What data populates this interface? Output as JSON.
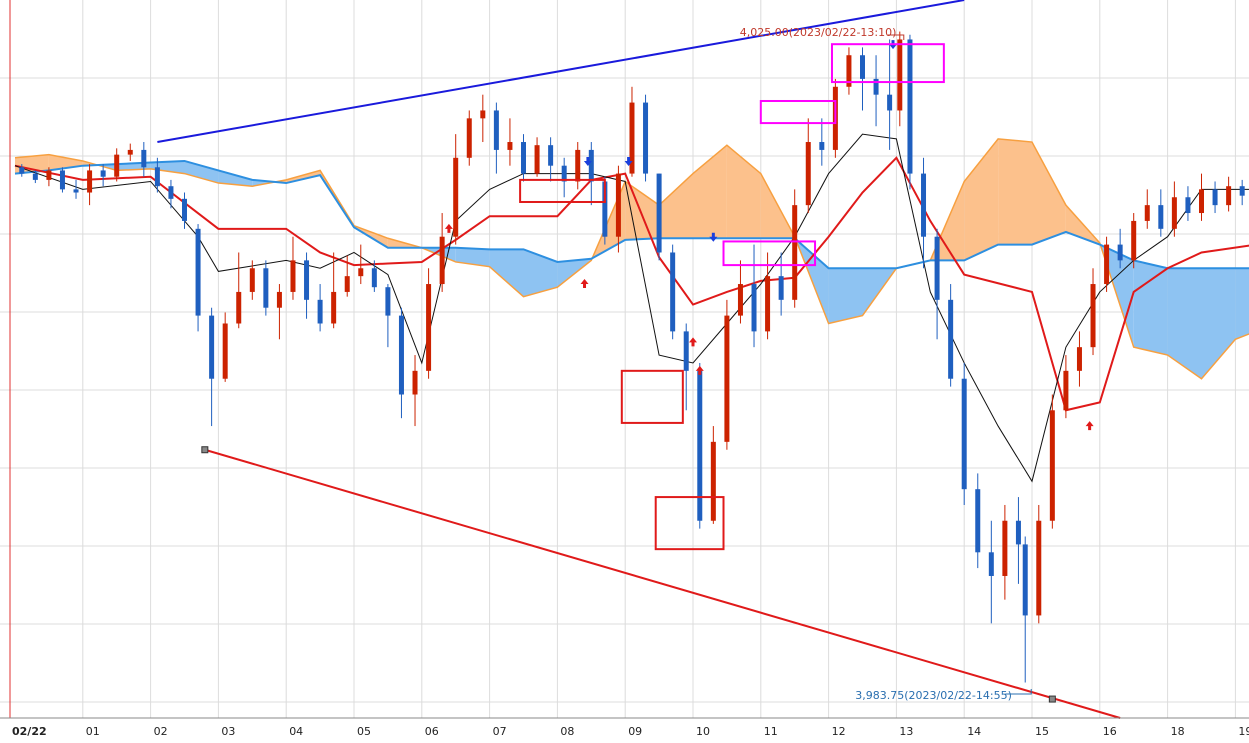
{
  "chart_data": {
    "type": "candlestick",
    "x_unit": "hour",
    "x_ticks": [
      "02/22",
      "01",
      "02",
      "03",
      "04",
      "05",
      "06",
      "07",
      "08",
      "09",
      "10",
      "11",
      "12",
      "13",
      "14",
      "15",
      "16",
      "18",
      "19"
    ],
    "x_range": [
      0,
      18.3
    ],
    "y_range": [
      3981.5,
      4027.0
    ],
    "high_annotation": {
      "text": "4,025.00(2023/02/22-13:10)",
      "x": 13.05,
      "price": 4025.0
    },
    "low_annotation": {
      "text": "3,983.75(2023/02/22-14:55)",
      "x": 14.9,
      "price": 3983.75
    },
    "trend_lines": [
      {
        "name": "upper",
        "color": "#1a1adc",
        "points": [
          [
            2.1,
            4018.0
          ],
          [
            14.0,
            4027.0
          ]
        ]
      },
      {
        "name": "lower",
        "color": "#e01a1a",
        "points": [
          [
            2.8,
            3998.5
          ],
          [
            16.3,
            3981.5
          ]
        ]
      }
    ],
    "cloud_points": [
      [
        0,
        4016.0,
        4017.0
      ],
      [
        0.5,
        4016.2,
        4017.2
      ],
      [
        1.0,
        4016.5,
        4016.8
      ],
      [
        1.5,
        4016.6,
        4016.2
      ],
      [
        2.0,
        4016.7,
        4016.3
      ],
      [
        2.5,
        4016.8,
        4016.0
      ],
      [
        3.0,
        4016.2,
        4015.4
      ],
      [
        3.5,
        4015.6,
        4015.2
      ],
      [
        4.0,
        4015.4,
        4015.6
      ],
      [
        4.5,
        4015.9,
        4016.2
      ],
      [
        5.0,
        4012.6,
        4012.7
      ],
      [
        5.5,
        4011.3,
        4011.9
      ],
      [
        6.0,
        4011.3,
        4011.3
      ],
      [
        6.5,
        4011.3,
        4010.4
      ],
      [
        7.0,
        4011.2,
        4010.1
      ],
      [
        7.5,
        4011.2,
        4008.2
      ],
      [
        8.0,
        4010.4,
        4008.8
      ],
      [
        8.5,
        4010.6,
        4010.5
      ],
      [
        9.0,
        4011.8,
        4015.5
      ],
      [
        9.5,
        4011.9,
        4014.0
      ],
      [
        10.0,
        4011.9,
        4016.0
      ],
      [
        10.5,
        4011.9,
        4017.8
      ],
      [
        11.0,
        4011.9,
        4016.0
      ],
      [
        11.5,
        4011.9,
        4012.0
      ],
      [
        12.0,
        4010.0,
        4006.5
      ],
      [
        12.5,
        4010.0,
        4007.0
      ],
      [
        13.0,
        4010.0,
        4010.0
      ],
      [
        13.5,
        4010.5,
        4010.5
      ],
      [
        14.0,
        4010.5,
        4015.5
      ],
      [
        14.5,
        4011.5,
        4018.2
      ],
      [
        15.0,
        4011.5,
        4018.0
      ],
      [
        15.5,
        4012.3,
        4014.0
      ],
      [
        16.0,
        4011.5,
        4011.6
      ],
      [
        16.5,
        4010.5,
        4005.0
      ],
      [
        17.0,
        4010.0,
        4004.5
      ],
      [
        17.5,
        4010.0,
        4003.0
      ],
      [
        18.0,
        4010.0,
        4005.5
      ],
      [
        18.3,
        4010.0,
        4006.0
      ]
    ],
    "base_line": [
      [
        0,
        4016.5
      ],
      [
        1.0,
        4015.6
      ],
      [
        2.0,
        4015.8
      ],
      [
        3.0,
        4012.5
      ],
      [
        4.0,
        4012.5
      ],
      [
        4.5,
        4011.0
      ],
      [
        5.0,
        4010.2
      ],
      [
        5.5,
        4010.3
      ],
      [
        6.0,
        4010.4
      ],
      [
        6.5,
        4011.8
      ],
      [
        7.0,
        4013.3
      ],
      [
        8.0,
        4013.3
      ],
      [
        8.5,
        4015.6
      ],
      [
        9.0,
        4016.0
      ],
      [
        9.5,
        4010.7
      ],
      [
        10.0,
        4007.7
      ],
      [
        10.5,
        4008.5
      ],
      [
        11.0,
        4009.2
      ],
      [
        11.5,
        4009.4
      ],
      [
        12.0,
        4012.0
      ],
      [
        12.5,
        4014.8
      ],
      [
        13.0,
        4017.0
      ],
      [
        13.5,
        4013.0
      ],
      [
        14.0,
        4009.6
      ],
      [
        15.0,
        4008.5
      ],
      [
        15.5,
        4001.0
      ],
      [
        16.0,
        4001.5
      ],
      [
        16.5,
        4008.5
      ],
      [
        17.0,
        4010.0
      ],
      [
        17.5,
        4011.0
      ],
      [
        18.3,
        4011.5
      ]
    ],
    "conversion_line": [
      [
        0,
        4016.5
      ],
      [
        1.0,
        4015.0
      ],
      [
        2.0,
        4015.5
      ],
      [
        2.7,
        4012.0
      ],
      [
        3.0,
        4009.8
      ],
      [
        4.0,
        4010.5
      ],
      [
        4.5,
        4010.0
      ],
      [
        5.0,
        4011.0
      ],
      [
        5.5,
        4009.6
      ],
      [
        6.0,
        4004.0
      ],
      [
        6.5,
        4013.0
      ],
      [
        7.0,
        4015.0
      ],
      [
        7.5,
        4016.0
      ],
      [
        8.0,
        4016.0
      ],
      [
        8.5,
        4016.0
      ],
      [
        9.0,
        4015.5
      ],
      [
        9.5,
        4004.5
      ],
      [
        10.0,
        4004.0
      ],
      [
        10.5,
        4006.5
      ],
      [
        11.0,
        4009.0
      ],
      [
        11.5,
        4012.0
      ],
      [
        12.0,
        4016.0
      ],
      [
        12.5,
        4018.5
      ],
      [
        13.0,
        4018.2
      ],
      [
        13.5,
        4008.5
      ],
      [
        14.0,
        4004.0
      ],
      [
        14.5,
        4000.0
      ],
      [
        15.0,
        3996.5
      ],
      [
        15.5,
        4005.0
      ],
      [
        16.0,
        4008.5
      ],
      [
        16.5,
        4010.5
      ],
      [
        17.0,
        4012.0
      ],
      [
        17.5,
        4015.0
      ],
      [
        18.3,
        4015.0
      ]
    ],
    "candles": [
      [
        0.1,
        4016.4,
        4016.0,
        4015.8,
        4016.6
      ],
      [
        0.3,
        4016.0,
        4015.6,
        4015.4,
        4016.2
      ],
      [
        0.5,
        4015.6,
        4016.2,
        4015.2,
        4016.4
      ],
      [
        0.7,
        4016.2,
        4015.0,
        4014.8,
        4016.4
      ],
      [
        0.9,
        4015.0,
        4014.8,
        4014.4,
        4015.6
      ],
      [
        1.1,
        4014.8,
        4016.2,
        4014.0,
        4016.6
      ],
      [
        1.3,
        4016.2,
        4015.8,
        4015.2,
        4016.6
      ],
      [
        1.5,
        4015.8,
        4017.2,
        4015.5,
        4017.6
      ],
      [
        1.7,
        4017.2,
        4017.5,
        4016.8,
        4017.9
      ],
      [
        1.9,
        4017.5,
        4016.4,
        4015.8,
        4018.0
      ],
      [
        2.1,
        4016.4,
        4015.2,
        4014.8,
        4017.0
      ],
      [
        2.3,
        4015.2,
        4014.4,
        4013.8,
        4015.6
      ],
      [
        2.5,
        4014.4,
        4013.0,
        4012.5,
        4014.8
      ],
      [
        2.7,
        4012.5,
        4007.0,
        4006.0,
        4012.8
      ],
      [
        2.9,
        4007.0,
        4003.0,
        4000.0,
        4007.5
      ],
      [
        3.1,
        4003.0,
        4006.5,
        4002.8,
        4007.2
      ],
      [
        3.3,
        4006.5,
        4008.5,
        4006.2,
        4011.0
      ],
      [
        3.5,
        4008.5,
        4010.0,
        4008.0,
        4010.5
      ],
      [
        3.7,
        4010.0,
        4007.5,
        4007.0,
        4010.5
      ],
      [
        3.9,
        4007.5,
        4008.5,
        4005.5,
        4009.0
      ],
      [
        4.1,
        4008.5,
        4010.5,
        4008.0,
        4012.0
      ],
      [
        4.3,
        4010.5,
        4008.0,
        4006.8,
        4011.0
      ],
      [
        4.5,
        4008.0,
        4006.5,
        4006.0,
        4009.0
      ],
      [
        4.7,
        4006.5,
        4008.5,
        4006.2,
        4011.0
      ],
      [
        4.9,
        4008.5,
        4009.5,
        4008.2,
        4010.8
      ],
      [
        5.1,
        4009.5,
        4010.0,
        4009.0,
        4011.5
      ],
      [
        5.3,
        4010.0,
        4008.8,
        4008.5,
        4010.5
      ],
      [
        5.5,
        4008.8,
        4007.0,
        4005.0,
        4009.0
      ],
      [
        5.7,
        4007.0,
        4002.0,
        4000.5,
        4007.5
      ],
      [
        5.9,
        4002.0,
        4003.5,
        4000.0,
        4004.5
      ],
      [
        6.1,
        4003.5,
        4009.0,
        4003.0,
        4010.0
      ],
      [
        6.3,
        4009.0,
        4012.0,
        4008.5,
        4013.5
      ],
      [
        6.5,
        4012.0,
        4017.0,
        4011.5,
        4018.5
      ],
      [
        6.7,
        4017.0,
        4019.5,
        4016.5,
        4020.0
      ],
      [
        6.9,
        4019.5,
        4020.0,
        4018.0,
        4021.0
      ],
      [
        7.1,
        4020.0,
        4017.5,
        4016.0,
        4020.5
      ],
      [
        7.3,
        4017.5,
        4018.0,
        4016.5,
        4019.5
      ],
      [
        7.5,
        4018.0,
        4016.0,
        4015.5,
        4018.5
      ],
      [
        7.7,
        4016.0,
        4017.8,
        4015.8,
        4018.3
      ],
      [
        7.9,
        4017.8,
        4016.5,
        4015.5,
        4018.3
      ],
      [
        8.1,
        4016.5,
        4015.5,
        4014.5,
        4017.0
      ],
      [
        8.3,
        4015.5,
        4017.5,
        4015.0,
        4018.0
      ],
      [
        8.5,
        4017.5,
        4015.5,
        4014.0,
        4018.0
      ],
      [
        8.7,
        4015.5,
        4012.0,
        4011.5,
        4015.8
      ],
      [
        8.9,
        4012.0,
        4016.0,
        4011.0,
        4016.5
      ],
      [
        9.1,
        4016.0,
        4020.5,
        4015.8,
        4021.5
      ],
      [
        9.3,
        4020.5,
        4016.0,
        4015.5,
        4021.0
      ],
      [
        9.5,
        4016.0,
        4011.0,
        4010.5,
        4016.0
      ],
      [
        9.7,
        4011.0,
        4006.0,
        4005.5,
        4011.5
      ],
      [
        9.9,
        4006.0,
        4003.5,
        4001.0,
        4006.5
      ],
      [
        10.1,
        4003.5,
        3994.0,
        3993.5,
        4004.0
      ],
      [
        10.3,
        3994.0,
        3999.0,
        3993.8,
        4000.0
      ],
      [
        10.5,
        3999.0,
        4007.0,
        3998.5,
        4008.0
      ],
      [
        10.7,
        4007.0,
        4009.0,
        4006.5,
        4010.5
      ],
      [
        10.9,
        4009.0,
        4006.0,
        4005.0,
        4011.5
      ],
      [
        11.1,
        4006.0,
        4009.5,
        4005.5,
        4011.0
      ],
      [
        11.3,
        4009.5,
        4008.0,
        4007.0,
        4011.0
      ],
      [
        11.5,
        4008.0,
        4014.0,
        4007.5,
        4015.0
      ],
      [
        11.7,
        4014.0,
        4018.0,
        4013.5,
        4019.5
      ],
      [
        11.9,
        4018.0,
        4017.5,
        4016.5,
        4019.5
      ],
      [
        12.1,
        4017.5,
        4021.5,
        4017.0,
        4022.0
      ],
      [
        12.3,
        4021.5,
        4023.5,
        4021.0,
        4024.0
      ],
      [
        12.5,
        4023.5,
        4022.0,
        4020.0,
        4024.0
      ],
      [
        12.7,
        4022.0,
        4021.0,
        4019.0,
        4023.5
      ],
      [
        12.9,
        4021.0,
        4020.0,
        4017.5,
        4024.5
      ],
      [
        13.05,
        4020.0,
        4024.5,
        4019.0,
        4025.0
      ],
      [
        13.2,
        4024.5,
        4016.0,
        4015.0,
        4024.8
      ],
      [
        13.4,
        4016.0,
        4012.0,
        4010.0,
        4017.0
      ],
      [
        13.6,
        4012.0,
        4008.0,
        4005.5,
        4012.5
      ],
      [
        13.8,
        4008.0,
        4003.0,
        4002.5,
        4009.0
      ],
      [
        14.0,
        4003.0,
        3996.0,
        3995.0,
        4004.0
      ],
      [
        14.2,
        3996.0,
        3992.0,
        3991.0,
        3997.0
      ],
      [
        14.4,
        3992.0,
        3990.5,
        3987.5,
        3994.0
      ],
      [
        14.6,
        3990.5,
        3994.0,
        3989.0,
        3995.0
      ],
      [
        14.8,
        3994.0,
        3992.5,
        3990.0,
        3995.5
      ],
      [
        14.9,
        3992.5,
        3988.0,
        3983.75,
        3993.0
      ],
      [
        15.1,
        3988.0,
        3994.0,
        3987.5,
        3995.0
      ],
      [
        15.3,
        3994.0,
        4001.0,
        3993.5,
        4002.0
      ],
      [
        15.5,
        4001.0,
        4003.5,
        4000.5,
        4004.5
      ],
      [
        15.7,
        4003.5,
        4005.0,
        4002.5,
        4006.0
      ],
      [
        15.9,
        4005.0,
        4009.0,
        4004.5,
        4010.0
      ],
      [
        16.1,
        4009.0,
        4011.5,
        4008.5,
        4012.0
      ],
      [
        16.3,
        4011.5,
        4010.5,
        4010.0,
        4012.5
      ],
      [
        16.5,
        4010.5,
        4013.0,
        4010.0,
        4013.5
      ],
      [
        16.7,
        4013.0,
        4014.0,
        4012.5,
        4015.0
      ],
      [
        16.9,
        4014.0,
        4012.5,
        4012.0,
        4015.0
      ],
      [
        17.1,
        4012.5,
        4014.5,
        4012.0,
        4015.5
      ],
      [
        17.3,
        4014.5,
        4013.5,
        4013.0,
        4015.2
      ],
      [
        17.5,
        4013.5,
        4015.0,
        4013.0,
        4016.0
      ],
      [
        17.7,
        4015.0,
        4014.0,
        4013.5,
        4015.5
      ],
      [
        17.9,
        4014.0,
        4015.2,
        4013.6,
        4015.8
      ],
      [
        18.1,
        4015.2,
        4014.6,
        4014.0,
        4015.6
      ],
      [
        18.25,
        4014.6,
        4013.8,
        4013.2,
        4015.0
      ]
    ],
    "signals": [
      {
        "x": 6.4,
        "price": 4012.5,
        "dir": "up"
      },
      {
        "x": 8.4,
        "price": 4009.0,
        "dir": "up"
      },
      {
        "x": 8.45,
        "price": 4016.8,
        "dir": "down"
      },
      {
        "x": 9.05,
        "price": 4016.8,
        "dir": "down"
      },
      {
        "x": 10.0,
        "price": 4005.3,
        "dir": "up"
      },
      {
        "x": 10.1,
        "price": 4003.5,
        "dir": "up"
      },
      {
        "x": 10.3,
        "price": 4012.0,
        "dir": "down"
      },
      {
        "x": 12.95,
        "price": 4024.2,
        "dir": "down"
      },
      {
        "x": 15.85,
        "price": 4000.0,
        "dir": "up"
      }
    ],
    "boxes": [
      {
        "color": "#e01a1a",
        "x0": 7.45,
        "x1": 8.7,
        "y0": 4015.6,
        "y1": 4014.2
      },
      {
        "color": "#e01a1a",
        "x0": 8.95,
        "x1": 9.85,
        "y0": 4003.5,
        "y1": 4000.2
      },
      {
        "color": "#e01a1a",
        "x0": 9.45,
        "x1": 10.45,
        "y0": 3995.5,
        "y1": 3992.2
      },
      {
        "color": "#ff00ff",
        "x0": 10.45,
        "x1": 11.8,
        "y0": 4011.7,
        "y1": 4010.2
      },
      {
        "color": "#ff00ff",
        "x0": 11.0,
        "x1": 12.1,
        "y0": 4020.6,
        "y1": 4019.2
      },
      {
        "color": "#ff00ff",
        "x0": 12.05,
        "x1": 13.7,
        "y0": 4024.2,
        "y1": 4021.8
      }
    ],
    "colors": {
      "up": "#cc2200",
      "down": "#1f5fbf",
      "cloud_bull": "#fcc18c",
      "cloud_bear": "#8ec3f2",
      "span_a": "#f7a040",
      "span_b": "#2d8fe0",
      "base": "#e01a1a",
      "conversion": "#111111",
      "grid": "#dcdcdc"
    }
  }
}
